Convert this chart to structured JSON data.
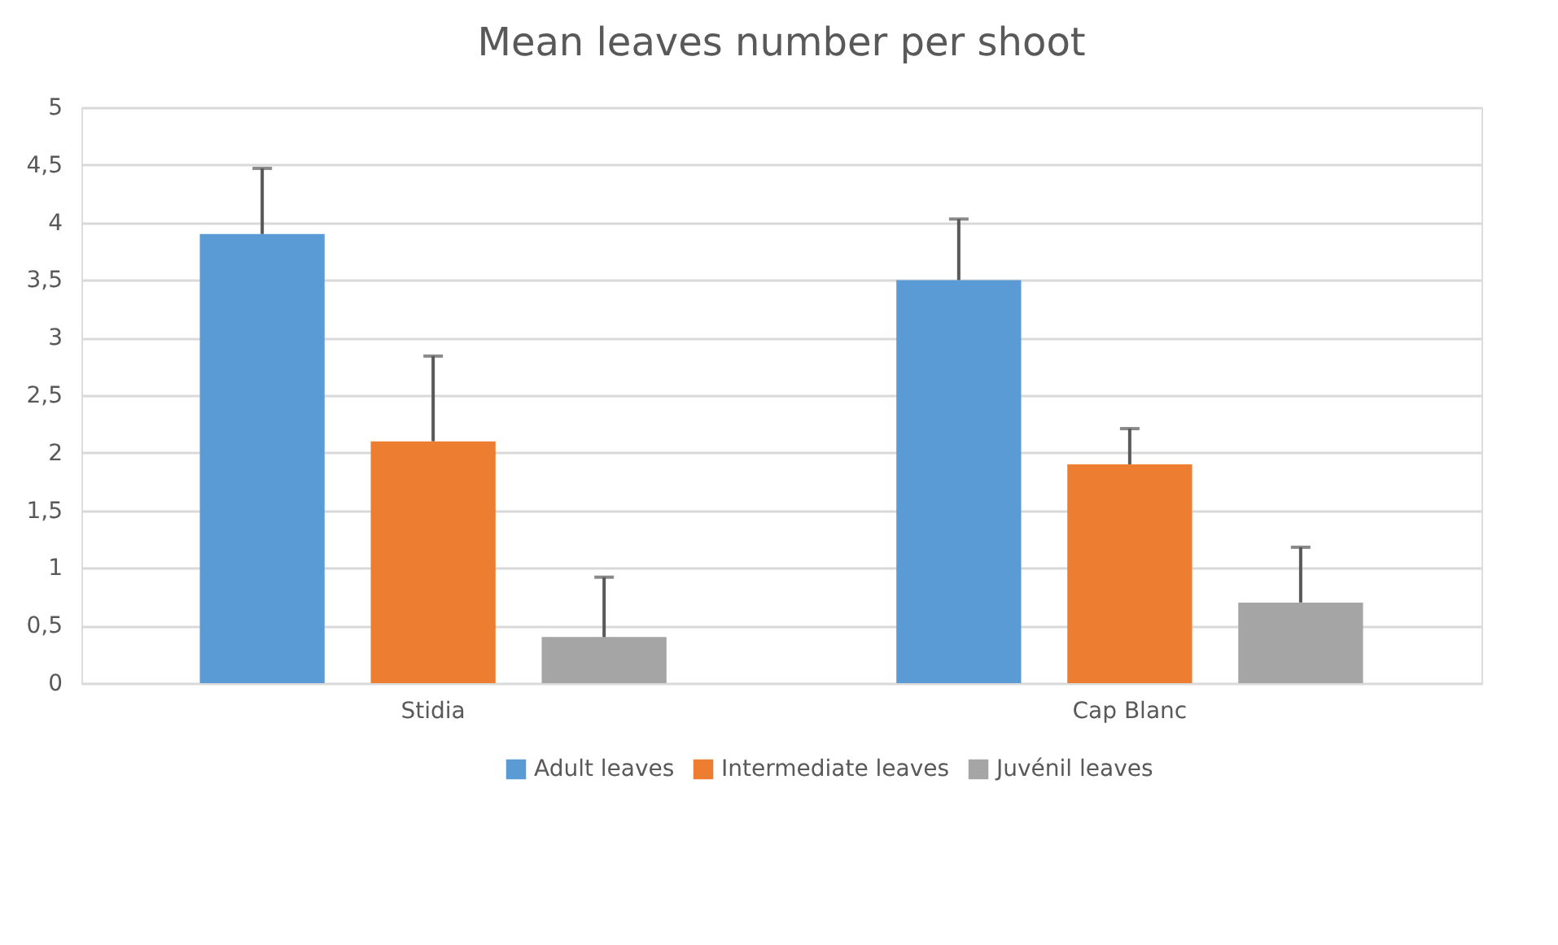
{
  "chart_data": {
    "type": "bar",
    "title": "Mean leaves number per shoot",
    "categories": [
      "Stidia",
      "Cap Blanc"
    ],
    "series": [
      {
        "name": "Adult leaves",
        "color": "#5b9bd5",
        "values": [
          3.9,
          3.5
        ],
        "errors": [
          [
            3.9,
            4.47
          ],
          [
            3.5,
            4.03
          ]
        ]
      },
      {
        "name": "Intermediate leaves",
        "color": "#ed7d31",
        "values": [
          2.1,
          1.9
        ],
        "errors": [
          [
            2.1,
            2.84
          ],
          [
            1.9,
            2.21
          ]
        ]
      },
      {
        "name": "Juvénil leaves",
        "color": "#a5a5a5",
        "values": [
          0.4,
          0.7
        ],
        "errors": [
          [
            0.4,
            0.92
          ],
          [
            0.7,
            1.18
          ]
        ]
      }
    ],
    "ylim": [
      0,
      5
    ],
    "yticks": [
      {
        "value": 0,
        "label": "0"
      },
      {
        "value": 0.5,
        "label": "0,5"
      },
      {
        "value": 1,
        "label": "1"
      },
      {
        "value": 1.5,
        "label": "1,5"
      },
      {
        "value": 2,
        "label": "2"
      },
      {
        "value": 2.5,
        "label": "2,5"
      },
      {
        "value": 3,
        "label": "3"
      },
      {
        "value": 3.5,
        "label": "3,5"
      },
      {
        "value": 4,
        "label": "4"
      },
      {
        "value": 4.5,
        "label": "4,5"
      },
      {
        "value": 5,
        "label": "5"
      }
    ],
    "grid": "y",
    "legend": "bottom"
  }
}
